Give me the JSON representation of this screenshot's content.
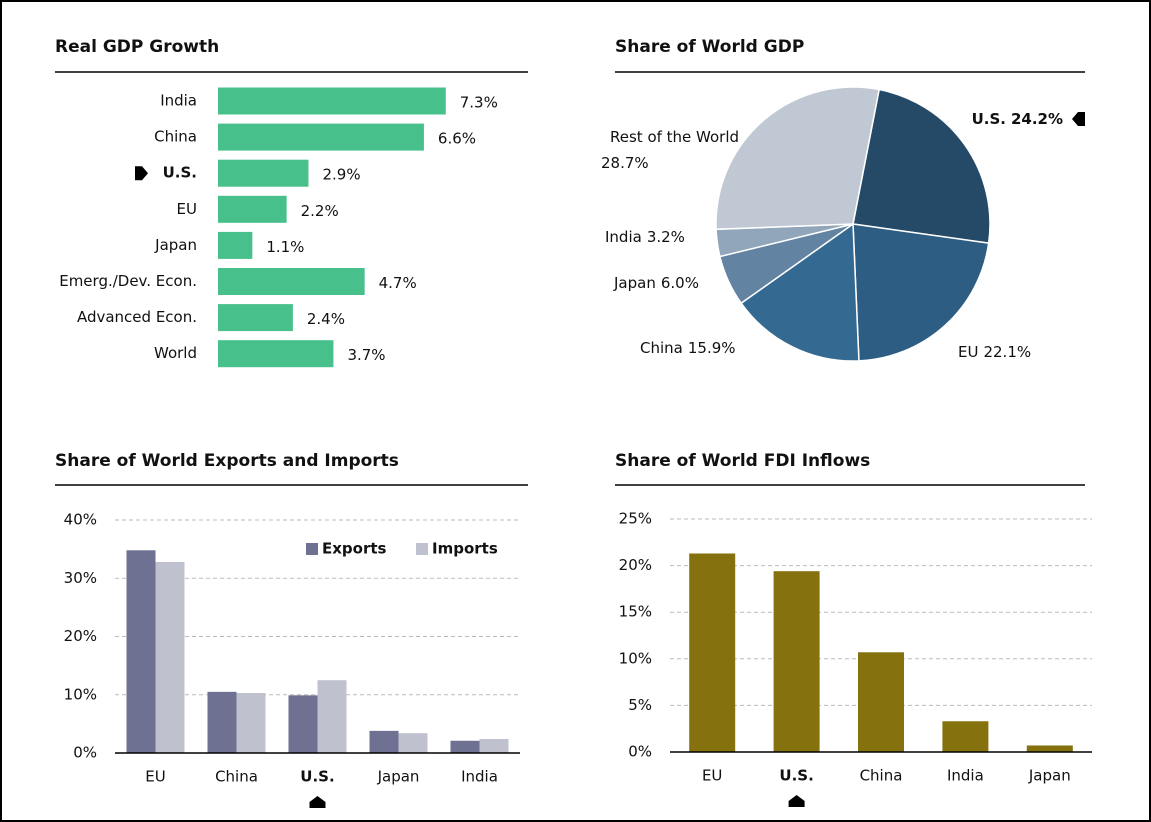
{
  "chart_data": [
    {
      "type": "bar",
      "orientation": "horizontal",
      "title": "Real GDP Growth",
      "categories": [
        "India",
        "China",
        "U.S.",
        "EU",
        "Japan",
        "Emerg./Dev. Econ.",
        "Advanced Econ.",
        "World"
      ],
      "values": [
        7.3,
        6.6,
        2.9,
        2.2,
        1.1,
        4.7,
        2.4,
        3.7
      ],
      "value_labels": [
        "7.3%",
        "6.6%",
        "2.9%",
        "2.2%",
        "1.1%",
        "4.7%",
        "2.4%",
        "3.7%"
      ],
      "color": "#47c08b",
      "highlight": "U.S."
    },
    {
      "type": "pie",
      "title": "Share of World GDP",
      "categories": [
        "U.S.",
        "EU",
        "China",
        "Japan",
        "India",
        "Rest of the World"
      ],
      "values": [
        24.2,
        22.1,
        15.9,
        6.0,
        3.2,
        28.7
      ],
      "value_labels": [
        "24.2%",
        "22.1%",
        "15.9%",
        "6.0%",
        "3.2%",
        "28.7%"
      ],
      "colors": [
        "#254a68",
        "#2d5d83",
        "#346a91",
        "#6283a1",
        "#91a6ba",
        "#c0c8d3"
      ],
      "highlight": "U.S."
    },
    {
      "type": "bar",
      "title": "Share of World Exports and Imports",
      "categories": [
        "EU",
        "China",
        "U.S.",
        "Japan",
        "India"
      ],
      "series": [
        {
          "name": "Exports",
          "color": "#6e7191",
          "values": [
            34.8,
            10.5,
            9.9,
            3.8,
            2.1
          ]
        },
        {
          "name": "Imports",
          "color": "#c0c1cf",
          "values": [
            32.8,
            10.3,
            12.5,
            3.4,
            2.4
          ]
        }
      ],
      "ylim": [
        0,
        40
      ],
      "yticks": [
        {
          "value": 0,
          "label": "0%"
        },
        {
          "value": 10,
          "label": "10%"
        },
        {
          "value": 20,
          "label": "20%"
        },
        {
          "value": 30,
          "label": "30%"
        },
        {
          "value": 40,
          "label": "40%"
        }
      ],
      "grid": true,
      "legend": "upper right",
      "highlight": "U.S."
    },
    {
      "type": "bar",
      "title": "Share of World FDI Inflows",
      "categories": [
        "EU",
        "U.S.",
        "China",
        "India",
        "Japan"
      ],
      "values": [
        21.3,
        19.4,
        10.7,
        3.3,
        0.7
      ],
      "color": "#85720f",
      "ylim": [
        0,
        25
      ],
      "yticks": [
        {
          "value": 0,
          "label": "0%"
        },
        {
          "value": 5,
          "label": "5%"
        },
        {
          "value": 10,
          "label": "10%"
        },
        {
          "value": 15,
          "label": "15%"
        },
        {
          "value": 20,
          "label": "20%"
        },
        {
          "value": 25,
          "label": "25%"
        }
      ],
      "grid": true,
      "highlight": "U.S."
    }
  ]
}
